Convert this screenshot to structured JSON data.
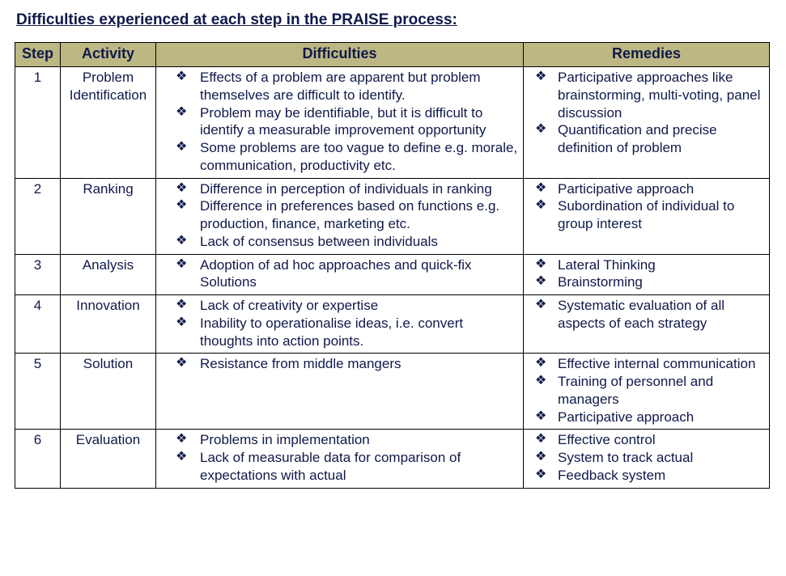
{
  "title": "Difficulties experienced at each step in the PRAISE process:",
  "columns": {
    "step": "Step",
    "activity": "Activity",
    "difficulties": "Difficulties",
    "remedies": "Remedies"
  },
  "header_bg": "#bcb783",
  "border_color": "#000000",
  "text_color": "#10194a",
  "rows": [
    {
      "step": "1",
      "activity": "Problem Identification",
      "difficulties": [
        "Effects of a problem are apparent but problem themselves are difficult to identify.",
        "Problem may be identifiable, but it is difficult to identify a measurable improvement opportunity",
        "Some problems are too vague to define e.g. morale, communication, productivity etc."
      ],
      "remedies": [
        "Participative approaches like brainstorming, multi-voting, panel discussion",
        "Quantification and precise definition of problem"
      ]
    },
    {
      "step": "2",
      "activity": "Ranking",
      "difficulties": [
        "Difference in perception of individuals in ranking",
        "Difference in preferences based on functions e.g. production, finance, marketing etc.",
        "Lack of consensus between individuals"
      ],
      "remedies": [
        "Participative approach",
        "Subordination of individual to group interest"
      ]
    },
    {
      "step": "3",
      "activity": "Analysis",
      "difficulties": [
        "Adoption of ad hoc approaches and quick-fix Solutions"
      ],
      "remedies": [
        "Lateral Thinking",
        "Brainstorming"
      ]
    },
    {
      "step": "4",
      "activity": "Innovation",
      "difficulties": [
        "Lack of creativity or expertise",
        "Inability to operationalise ideas, i.e. convert thoughts into action points."
      ],
      "remedies": [
        "Systematic evaluation of all aspects of each strategy"
      ]
    },
    {
      "step": "5",
      "activity": "Solution",
      "difficulties": [
        "Resistance from middle mangers"
      ],
      "remedies": [
        "Effective internal communication",
        "Training of personnel and managers",
        "Participative approach"
      ]
    },
    {
      "step": "6",
      "activity": "Evaluation",
      "difficulties": [
        "Problems in implementation",
        "Lack of measurable data for comparison of expectations with actual"
      ],
      "remedies": [
        "Effective control",
        "System to track actual",
        "Feedback system"
      ]
    }
  ]
}
